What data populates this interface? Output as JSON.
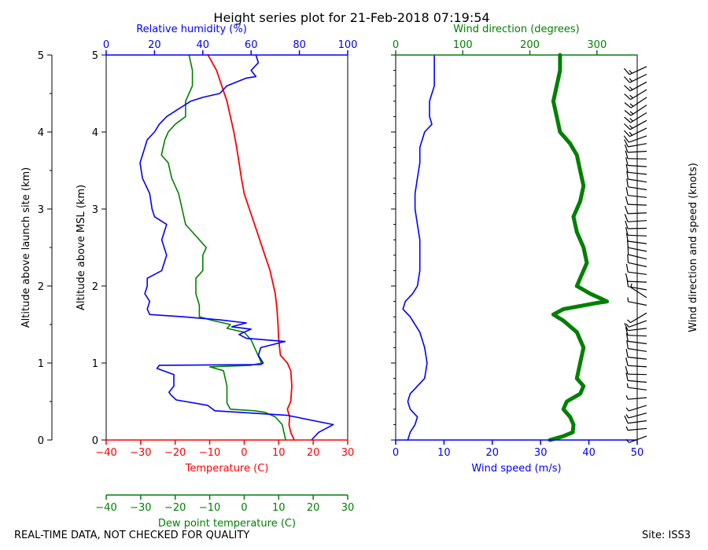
{
  "title": "Height series plot for 21-Feb-2018 07:19:54",
  "footer": {
    "quality_note": "REAL-TIME DATA, NOT CHECKED FOR QUALITY",
    "site": "Site: ISS3"
  },
  "colors": {
    "temperature": "#ff0000",
    "dewpoint": "#008000",
    "humidity": "#0000ff",
    "wind_speed": "#0000ff",
    "wind_direction": "#008000",
    "barbs": "#000000"
  },
  "chart_data": [
    {
      "type": "line",
      "name": "thermo-panel",
      "ylabel_outer": "Altitude above launch site (km)",
      "ylabel_inner": "Altitude above MSL (km)",
      "ylim": [
        0,
        5
      ],
      "yticks": [
        "0",
        "1",
        "2",
        "3",
        "4",
        "5"
      ],
      "x_axes": [
        {
          "id": "temperature",
          "label": "Temperature (C)",
          "position": "bottom",
          "range": [
            -40,
            30
          ],
          "ticks": [
            "−40",
            "−30",
            "−20",
            "−10",
            "0",
            "10",
            "20",
            "30"
          ]
        },
        {
          "id": "dewpoint",
          "label": "Dew point temperature (C)",
          "position": "bottom-offset",
          "range": [
            -40,
            30
          ],
          "ticks": [
            "−40",
            "−30",
            "−20",
            "−10",
            "0",
            "10",
            "20",
            "30"
          ]
        },
        {
          "id": "humidity",
          "label": "Relative humidity (%)",
          "position": "top",
          "range": [
            0,
            100
          ],
          "ticks": [
            "0",
            "20",
            "40",
            "60",
            "80",
            "100"
          ]
        }
      ],
      "series": [
        {
          "name": "Temperature",
          "axis": "temperature",
          "points": [
            [
              14.5,
              0
            ],
            [
              13.5,
              0.1
            ],
            [
              13,
              0.2
            ],
            [
              13.2,
              0.3
            ],
            [
              12.5,
              0.4
            ],
            [
              13.5,
              0.5
            ],
            [
              13.8,
              0.7
            ],
            [
              13.5,
              0.9
            ],
            [
              12.5,
              1.0
            ],
            [
              10.5,
              1.1
            ],
            [
              10,
              1.3
            ],
            [
              9.8,
              1.5
            ],
            [
              9.5,
              1.7
            ],
            [
              9,
              1.9
            ],
            [
              8.5,
              2.0
            ],
            [
              7.5,
              2.2
            ],
            [
              6,
              2.4
            ],
            [
              4.5,
              2.6
            ],
            [
              3,
              2.8
            ],
            [
              1.5,
              3.0
            ],
            [
              0,
              3.2
            ],
            [
              -0.8,
              3.4
            ],
            [
              -1.5,
              3.6
            ],
            [
              -2.2,
              3.8
            ],
            [
              -3,
              4.0
            ],
            [
              -4,
              4.2
            ],
            [
              -5,
              4.4
            ],
            [
              -6.5,
              4.6
            ],
            [
              -8,
              4.8
            ],
            [
              -10.5,
              5.0
            ]
          ]
        },
        {
          "name": "Dew point",
          "axis": "dewpoint",
          "points": [
            [
              12,
              0
            ],
            [
              11.5,
              0.1
            ],
            [
              11,
              0.2
            ],
            [
              9,
              0.3
            ],
            [
              6,
              0.36
            ],
            [
              3,
              0.38
            ],
            [
              -4,
              0.4
            ],
            [
              -5,
              0.48
            ],
            [
              -5,
              0.7
            ],
            [
              -6,
              0.9
            ],
            [
              -10,
              0.95
            ],
            [
              2,
              0.97
            ],
            [
              5,
              1.0
            ],
            [
              4,
              1.1
            ],
            [
              3,
              1.2
            ],
            [
              2,
              1.3
            ],
            [
              0,
              1.4
            ],
            [
              -5,
              1.45
            ],
            [
              -4,
              1.5
            ],
            [
              -9,
              1.55
            ],
            [
              -13,
              1.6
            ],
            [
              -13,
              1.75
            ],
            [
              -14,
              1.9
            ],
            [
              -14,
              2.1
            ],
            [
              -12,
              2.2
            ],
            [
              -12,
              2.4
            ],
            [
              -11,
              2.5
            ],
            [
              -13,
              2.6
            ],
            [
              -15,
              2.7
            ],
            [
              -17,
              2.8
            ],
            [
              -18,
              3.0
            ],
            [
              -19,
              3.2
            ],
            [
              -21,
              3.4
            ],
            [
              -22,
              3.6
            ],
            [
              -24,
              3.7
            ],
            [
              -23,
              3.9
            ],
            [
              -22,
              4.0
            ],
            [
              -20,
              4.1
            ],
            [
              -17,
              4.2
            ],
            [
              -17,
              4.4
            ],
            [
              -16,
              4.5
            ],
            [
              -15,
              4.6
            ],
            [
              -15,
              4.8
            ],
            [
              -16,
              5.0
            ]
          ]
        },
        {
          "name": "Relative humidity",
          "axis": "humidity",
          "points": [
            [
              85,
              0
            ],
            [
              88,
              0.1
            ],
            [
              94,
              0.2
            ],
            [
              75,
              0.32
            ],
            [
              45,
              0.38
            ],
            [
              42,
              0.45
            ],
            [
              29,
              0.52
            ],
            [
              27,
              0.58
            ],
            [
              26,
              0.62
            ],
            [
              28,
              0.7
            ],
            [
              28,
              0.85
            ],
            [
              21,
              0.93
            ],
            [
              22,
              0.97
            ],
            [
              64,
              0.98
            ],
            [
              65,
              1.0
            ],
            [
              63,
              1.1
            ],
            [
              64,
              1.2
            ],
            [
              74,
              1.28
            ],
            [
              58,
              1.32
            ],
            [
              55,
              1.37
            ],
            [
              60,
              1.44
            ],
            [
              52,
              1.47
            ],
            [
              58,
              1.52
            ],
            [
              47,
              1.56
            ],
            [
              32,
              1.6
            ],
            [
              18,
              1.63
            ],
            [
              17,
              1.7
            ],
            [
              18,
              1.8
            ],
            [
              16,
              1.9
            ],
            [
              17,
              2.0
            ],
            [
              17,
              2.1
            ],
            [
              23,
              2.2
            ],
            [
              25,
              2.4
            ],
            [
              23,
              2.6
            ],
            [
              25,
              2.8
            ],
            [
              20,
              2.9
            ],
            [
              19,
              3.0
            ],
            [
              18,
              3.2
            ],
            [
              15,
              3.4
            ],
            [
              14,
              3.6
            ],
            [
              15,
              3.7
            ],
            [
              17,
              3.9
            ],
            [
              20,
              4.0
            ],
            [
              22,
              4.1
            ],
            [
              25,
              4.2
            ],
            [
              30,
              4.3
            ],
            [
              35,
              4.4
            ],
            [
              40,
              4.45
            ],
            [
              47,
              4.5
            ],
            [
              50,
              4.6
            ],
            [
              58,
              4.7
            ],
            [
              62,
              4.72
            ],
            [
              60,
              4.8
            ],
            [
              63,
              4.9
            ],
            [
              62,
              5.0
            ]
          ]
        }
      ]
    },
    {
      "type": "line",
      "name": "wind-panel",
      "ylim": [
        0,
        5
      ],
      "right_label": "Wind direction and speed (knots)",
      "x_axes": [
        {
          "id": "wind_speed",
          "label": "Wind speed (m/s)",
          "position": "bottom",
          "range": [
            0,
            50
          ],
          "ticks": [
            "0",
            "10",
            "20",
            "30",
            "40",
            "50"
          ]
        },
        {
          "id": "wind_direction",
          "label": "Wind direction (degrees)",
          "position": "top",
          "range": [
            0,
            360
          ],
          "ticks": [
            "0",
            "100",
            "200",
            "300"
          ]
        }
      ],
      "series": [
        {
          "name": "Wind speed",
          "axis": "wind_speed",
          "points": [
            [
              2.5,
              0
            ],
            [
              3,
              0.1
            ],
            [
              4,
              0.2
            ],
            [
              4.5,
              0.3
            ],
            [
              3,
              0.4
            ],
            [
              2.5,
              0.5
            ],
            [
              3,
              0.6
            ],
            [
              4.5,
              0.7
            ],
            [
              6,
              0.8
            ],
            [
              6.5,
              1.0
            ],
            [
              6,
              1.2
            ],
            [
              5,
              1.4
            ],
            [
              3,
              1.6
            ],
            [
              1.5,
              1.7
            ],
            [
              2,
              1.8
            ],
            [
              3.5,
              1.9
            ],
            [
              4.5,
              2.0
            ],
            [
              5,
              2.2
            ],
            [
              5,
              2.4
            ],
            [
              5,
              2.6
            ],
            [
              4.5,
              2.8
            ],
            [
              4,
              3.0
            ],
            [
              4,
              3.2
            ],
            [
              4.5,
              3.4
            ],
            [
              5,
              3.6
            ],
            [
              5,
              3.8
            ],
            [
              6,
              4.0
            ],
            [
              7.5,
              4.1
            ],
            [
              7,
              4.2
            ],
            [
              7,
              4.4
            ],
            [
              8,
              4.6
            ],
            [
              8,
              4.8
            ],
            [
              8,
              5.0
            ]
          ]
        },
        {
          "name": "Wind direction",
          "axis": "wind_direction",
          "points": [
            [
              230,
              0
            ],
            [
              250,
              0.05
            ],
            [
              264,
              0.1
            ],
            [
              265,
              0.2
            ],
            [
              260,
              0.3
            ],
            [
              250,
              0.4
            ],
            [
              255,
              0.5
            ],
            [
              275,
              0.6
            ],
            [
              280,
              0.7
            ],
            [
              270,
              0.8
            ],
            [
              275,
              1.0
            ],
            [
              280,
              1.2
            ],
            [
              270,
              1.4
            ],
            [
              250,
              1.55
            ],
            [
              235,
              1.63
            ],
            [
              250,
              1.7
            ],
            [
              300,
              1.78
            ],
            [
              315,
              1.8
            ],
            [
              290,
              1.9
            ],
            [
              270,
              2.0
            ],
            [
              275,
              2.1
            ],
            [
              285,
              2.3
            ],
            [
              280,
              2.5
            ],
            [
              270,
              2.7
            ],
            [
              265,
              2.9
            ],
            [
              275,
              3.1
            ],
            [
              280,
              3.3
            ],
            [
              275,
              3.5
            ],
            [
              270,
              3.7
            ],
            [
              260,
              3.85
            ],
            [
              245,
              4.0
            ],
            [
              240,
              4.2
            ],
            [
              235,
              4.4
            ],
            [
              240,
              4.6
            ],
            [
              245,
              4.8
            ],
            [
              245,
              5.0
            ]
          ]
        }
      ]
    }
  ]
}
